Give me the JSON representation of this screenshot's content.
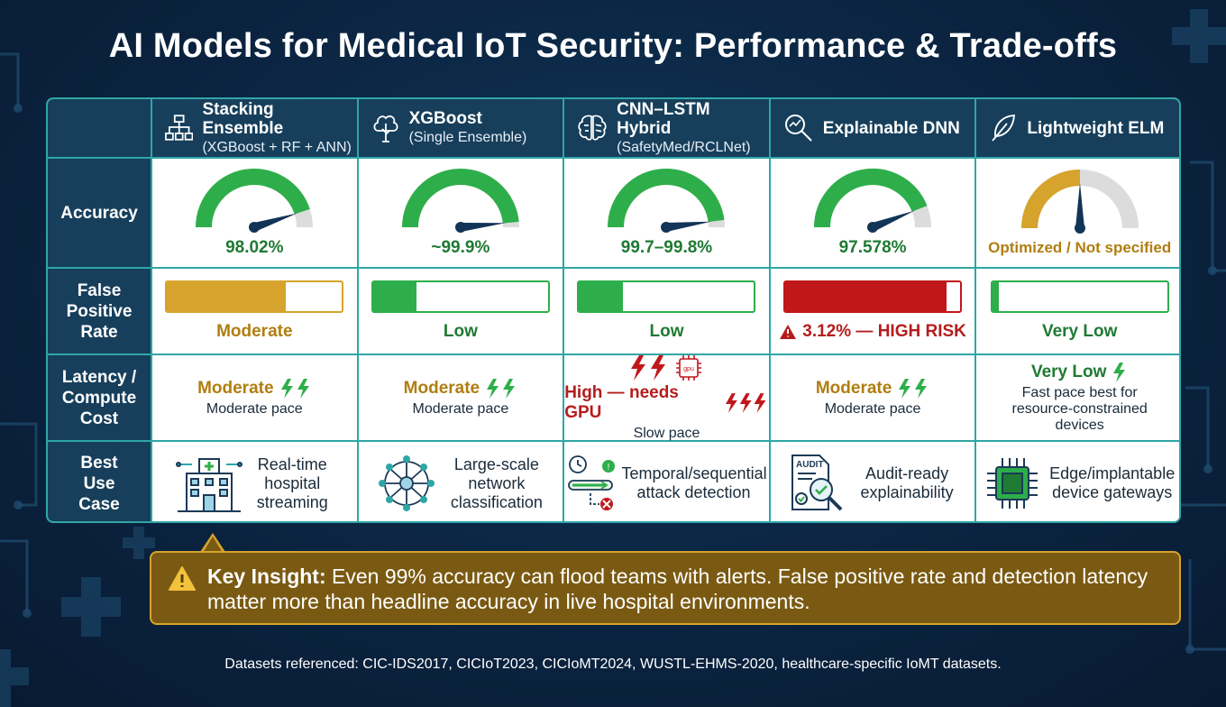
{
  "title": "AI Models for Medical IoT Security: Performance & Trade-offs",
  "row_labels": {
    "accuracy": "Accuracy",
    "fpr": "False Positive Rate",
    "latency": "Latency / Compute Cost",
    "use_case": "Best Use Case"
  },
  "colors": {
    "green": "#2eae4a",
    "gold": "#d6a32c",
    "red": "#c0171b",
    "header_bg": "#173f5c",
    "border": "#2fa6a6"
  },
  "models": [
    {
      "name": "Stacking Ensemble",
      "sub": "(XGBoost + RF + ANN)",
      "icon": "hierarchy-icon",
      "accuracy_text": "98.02%",
      "accuracy_level": 0.9,
      "accuracy_color": "#2eae4a",
      "fpr_level": 0.68,
      "fpr_color": "#d6a32c",
      "fpr_label": "Moderate",
      "latency_label": "Moderate",
      "latency_sub": "Moderate pace",
      "use_case": "Real-time hospital streaming",
      "use_icon": "hospital-icon"
    },
    {
      "name": "XGBoost",
      "sub": "(Single Ensemble)",
      "icon": "tree-icon",
      "accuracy_text": "~99.9%",
      "accuracy_level": 0.97,
      "accuracy_color": "#2eae4a",
      "fpr_level": 0.25,
      "fpr_color": "#2eae4a",
      "fpr_label": "Low",
      "latency_label": "Moderate",
      "latency_sub": "Moderate pace",
      "use_case": "Large-scale network classification",
      "use_icon": "network-globe-icon"
    },
    {
      "name": "CNN–LSTM Hybrid",
      "sub": "(SafetyMed/RCLNet)",
      "icon": "brain-icon",
      "accuracy_text": "99.7–99.8%",
      "accuracy_level": 0.96,
      "accuracy_color": "#2eae4a",
      "fpr_level": 0.25,
      "fpr_color": "#2eae4a",
      "fpr_label": "Low",
      "latency_label": "High — needs GPU",
      "latency_sub": "Slow pace",
      "latency_chip": "gpu",
      "use_case": "Temporal/sequential attack detection",
      "use_icon": "timeline-icon"
    },
    {
      "name": "Explainable DNN",
      "sub": "",
      "icon": "magnifier-chart-icon",
      "accuracy_text": "97.578%",
      "accuracy_level": 0.88,
      "accuracy_color": "#2eae4a",
      "fpr_level": 0.92,
      "fpr_color": "#c0171b",
      "fpr_label": "3.12% — HIGH RISK",
      "latency_label": "Moderate",
      "latency_sub": "Moderate pace",
      "use_case": "Audit-ready explainability",
      "use_icon": "audit-document-icon",
      "audit_label": "AUDIT"
    },
    {
      "name": "Lightweight ELM",
      "sub": "",
      "icon": "feather-icon",
      "accuracy_text": "Optimized / Not specified",
      "accuracy_level": 0.5,
      "accuracy_color": "#d6a32c",
      "fpr_level": 0.04,
      "fpr_color": "#2eae4a",
      "fpr_label": "Very Low",
      "latency_label": "Very Low",
      "latency_sub": "Fast pace best for resource-constrained devices",
      "use_case": "Edge/implantable device gateways",
      "use_icon": "chip-icon"
    }
  ],
  "insight": {
    "heading": "Key Insight:",
    "body": "Even 99% accuracy can flood teams with alerts. False positive rate and detection latency matter more than headline accuracy in live hospital environments."
  },
  "footnote": "Datasets referenced: CIC-IDS2017, CICIoT2023, CICIoMT2024, WUSTL-EHMS-2020, healthcare-specific IoMT datasets."
}
